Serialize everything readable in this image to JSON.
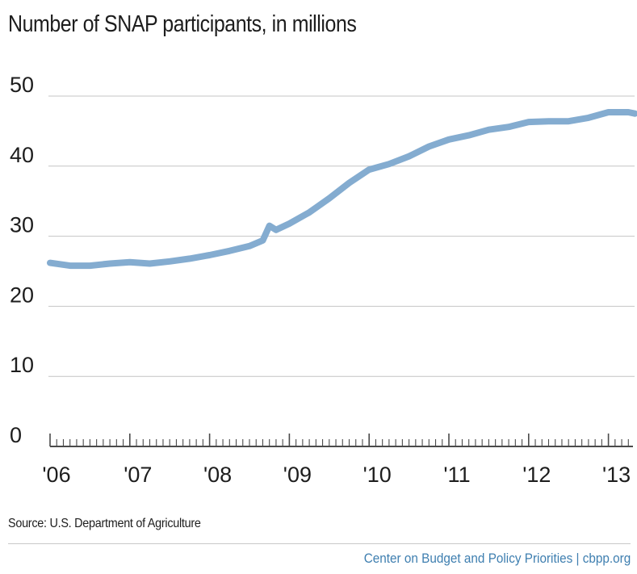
{
  "chart_data": {
    "type": "line",
    "title": "Number of SNAP participants, in millions",
    "xlabel": "",
    "ylabel": "",
    "ylim": [
      0,
      50
    ],
    "yticks": [
      "0",
      "10",
      "20",
      "30",
      "40",
      "50"
    ],
    "xticks": [
      "'06",
      "'07",
      "'08",
      "'09",
      "'10",
      "'11",
      "'12",
      "'13"
    ],
    "grid": true,
    "series": [
      {
        "color": "#84acd0",
        "x": [
          "2006-01",
          "2006-04",
          "2006-07",
          "2006-10",
          "2007-01",
          "2007-04",
          "2007-07",
          "2007-10",
          "2008-01",
          "2008-04",
          "2008-07",
          "2008-09",
          "2008-10",
          "2008-11",
          "2009-01",
          "2009-04",
          "2009-07",
          "2009-10",
          "2010-01",
          "2010-04",
          "2010-07",
          "2010-10",
          "2011-01",
          "2011-04",
          "2011-07",
          "2011-10",
          "2012-01",
          "2012-04",
          "2012-07",
          "2012-10",
          "2013-01",
          "2013-04",
          "2013-05"
        ],
        "values": [
          26.2,
          25.8,
          25.8,
          26.1,
          26.3,
          26.1,
          26.4,
          26.8,
          27.3,
          27.9,
          28.6,
          29.4,
          31.5,
          30.9,
          31.8,
          33.4,
          35.4,
          37.6,
          39.5,
          40.3,
          41.4,
          42.8,
          43.8,
          44.4,
          45.2,
          45.6,
          46.3,
          46.4,
          46.4,
          46.9,
          47.7,
          47.7,
          47.5
        ]
      }
    ]
  },
  "source": "Source: U.S. Department of Agriculture",
  "credit": "Center on Budget and Policy Priorities | cbpp.org"
}
